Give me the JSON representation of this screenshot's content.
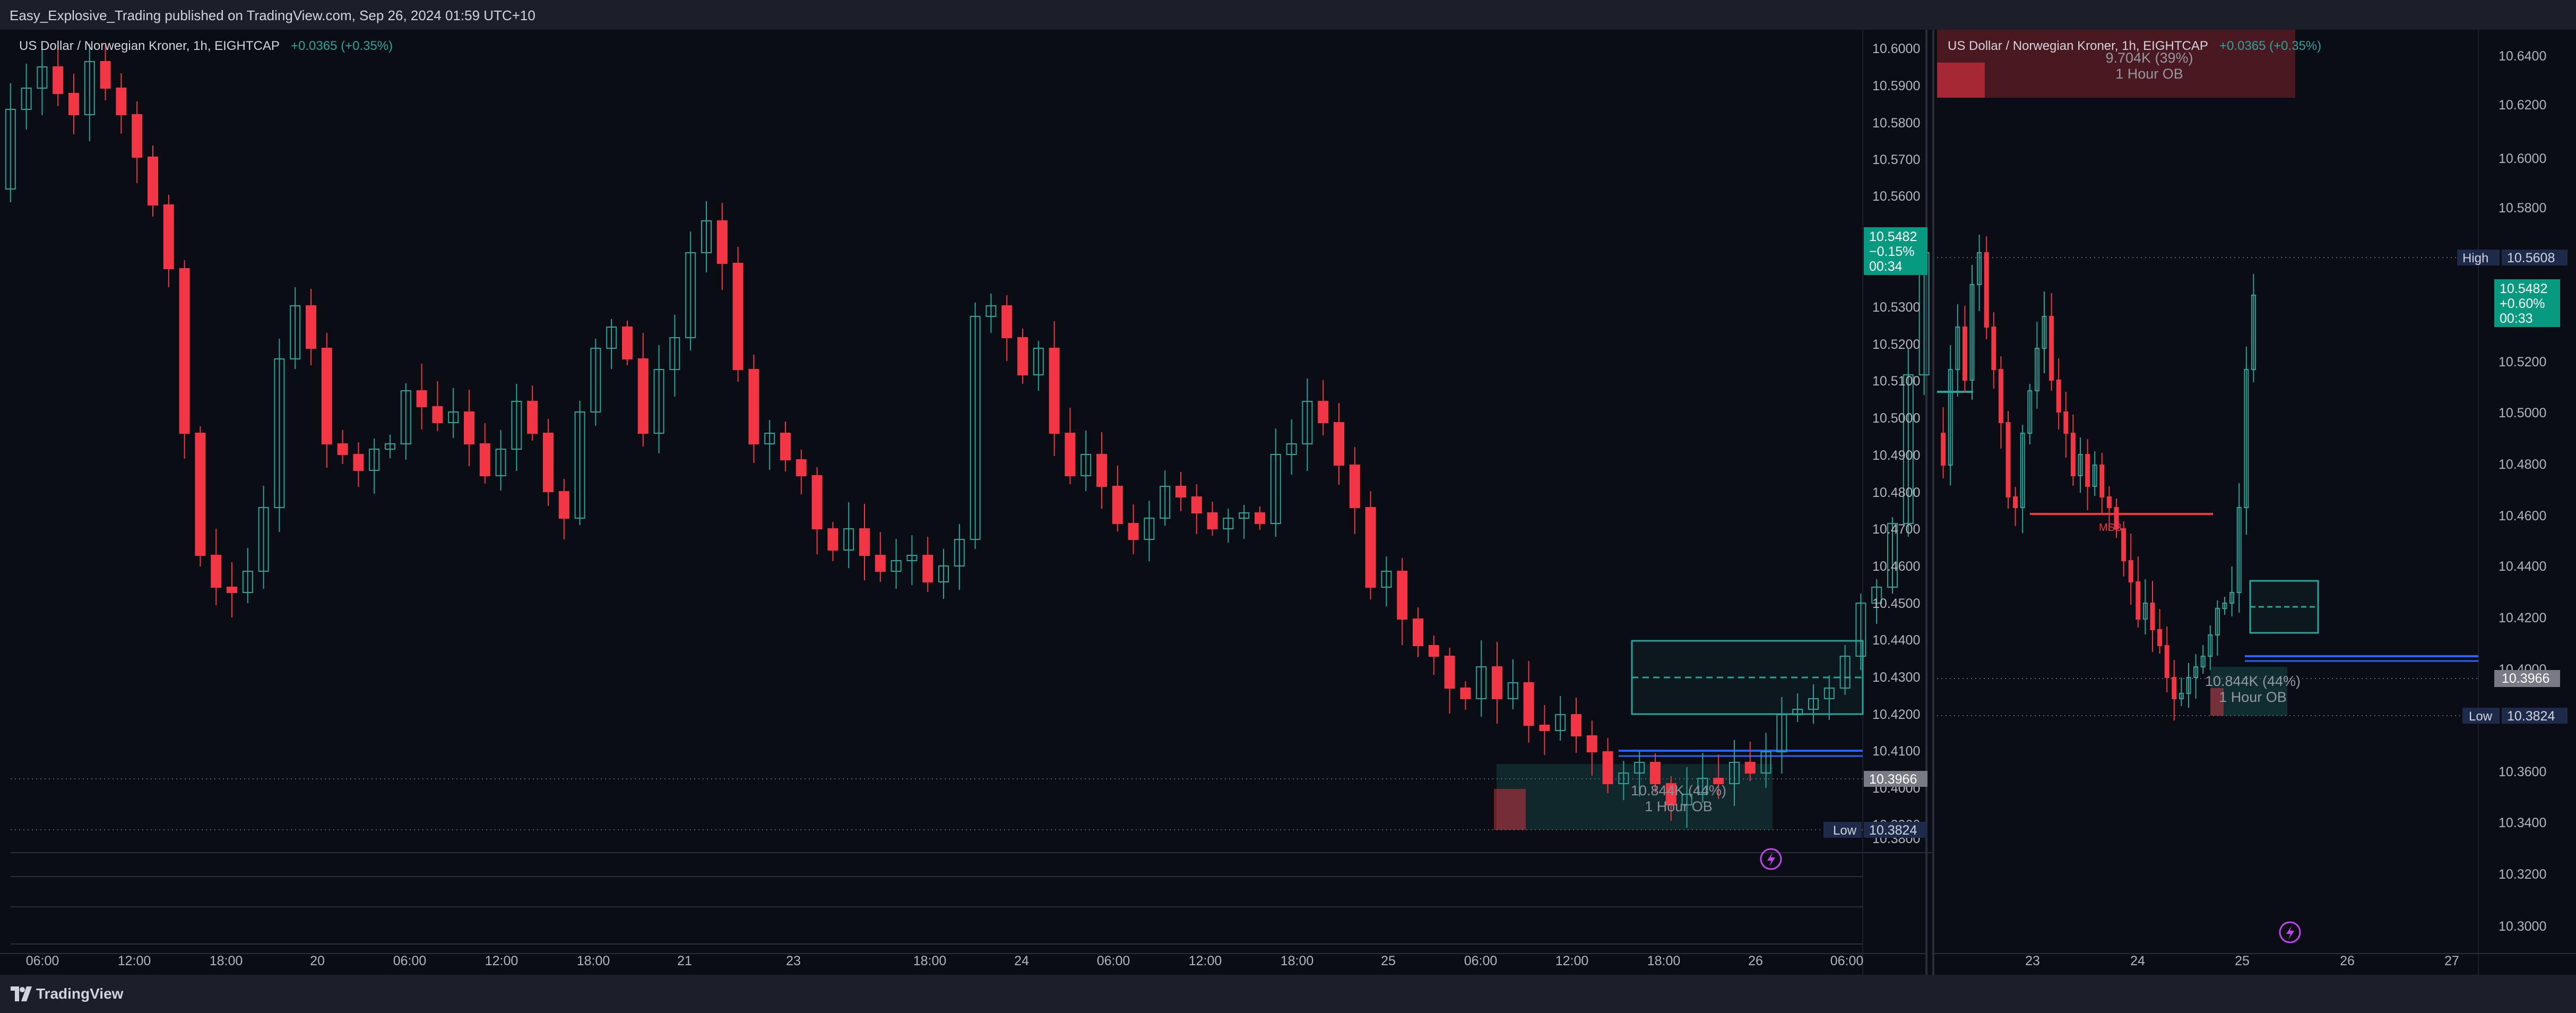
{
  "header": {
    "published": "Easy_Explosive_Trading published on TradingView.com, Sep 26, 2024 01:59 UTC+10"
  },
  "footer": {
    "brand": "TradingView"
  },
  "colors": {
    "up": "#26a69a",
    "down": "#f23645",
    "bg": "#0b0d14",
    "panel": "#1c1f29",
    "text": "#b2b5be",
    "blue": "#2962ff"
  },
  "left": {
    "legend": {
      "symbol": "US Dollar / Norwegian Kroner, 1h, EIGHTCAP",
      "change": "+0.0365 (+0.35%)"
    },
    "price_badge": {
      "price": "10.5482",
      "change": "−0.15%",
      "timer": "00:34"
    },
    "gray_badge": "10.3966",
    "low_badge": {
      "label": "Low",
      "value": "10.3824"
    },
    "ob_label": {
      "value": "10.844K (44%)",
      "text": "1 Hour OB"
    },
    "y_ticks": [
      "10.6000",
      "10.5900",
      "10.5800",
      "10.5700",
      "10.5600",
      "10.5300",
      "10.5200",
      "10.5100",
      "10.5000",
      "10.4900",
      "10.4800",
      "10.4700",
      "10.4600",
      "10.4500",
      "10.4400",
      "10.4300",
      "10.4200",
      "10.4100",
      "10.4000",
      "10.3900",
      "10.3800"
    ],
    "x_ticks": [
      "06:00",
      "12:00",
      "18:00",
      "20",
      "06:00",
      "12:00",
      "18:00",
      "21",
      "23",
      "18:00",
      "24",
      "06:00",
      "12:00",
      "18:00",
      "25",
      "06:00",
      "12:00",
      "18:00",
      "26",
      "06:00"
    ]
  },
  "right": {
    "legend": {
      "symbol": "US Dollar / Norwegian Kroner, 1h, EIGHTCAP",
      "change": "+0.0365 (+0.35%)"
    },
    "top_ob": {
      "value": "9.704K (39%)",
      "text": "1 Hour OB"
    },
    "high_badge": {
      "label": "High",
      "value": "10.5608"
    },
    "price_badge": {
      "price": "10.5482",
      "change": "+0.60%",
      "timer": "00:33"
    },
    "gray_badge": "10.3966",
    "low_badge": {
      "label": "Low",
      "value": "10.3824"
    },
    "msb": "MSB",
    "ob_label": {
      "value": "10.844K (44%)",
      "text": "1 Hour OB"
    },
    "y_ticks": [
      "10.6400",
      "10.6200",
      "10.6000",
      "10.5800",
      "10.5400",
      "10.5200",
      "10.5000",
      "10.4800",
      "10.4600",
      "10.4400",
      "10.4200",
      "10.4000",
      "10.3600",
      "10.3400",
      "10.3200",
      "10.3000"
    ],
    "x_ticks": [
      "23",
      "24",
      "25",
      "26",
      "27"
    ]
  }
}
